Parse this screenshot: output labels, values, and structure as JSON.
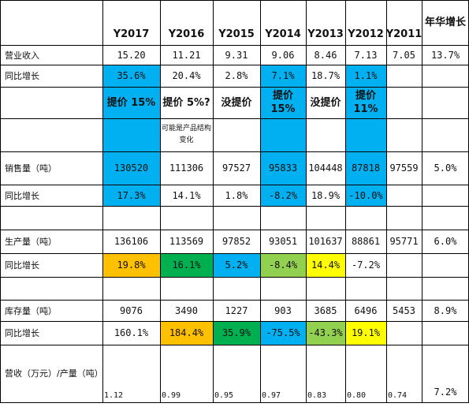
{
  "colors": {
    "blue": "#00B0F0",
    "orange": "#FFC000",
    "dark_green": "#00B050",
    "light_green": "#92D050",
    "yellow": "#FFFF00"
  },
  "headers": [
    "Y2017",
    "Y2016",
    "Y2015",
    "Y2014",
    "Y2013",
    "Y2012",
    "Y2011",
    "年华增长"
  ],
  "rows": {
    "revenue": {
      "label": "营业收入",
      "values": [
        "15.20",
        "11.21",
        "9.31",
        "9.06",
        "8.46",
        "7.13",
        "7.05",
        "13.7%"
      ]
    },
    "revenue_growth": {
      "label": "同比增长",
      "values": [
        "35.6%",
        "20.4%",
        "2.8%",
        "7.1%",
        "18.7%",
        "1.1%",
        "",
        ""
      ]
    },
    "price": {
      "values": [
        "提价 15%",
        "提价 5%?",
        "没提价",
        "提价 15%",
        "没提价",
        "提价 11%",
        "",
        ""
      ]
    },
    "price_note": {
      "values": [
        "",
        "可能是产品结构变化",
        "",
        "",
        "",
        "",
        "",
        ""
      ]
    },
    "sales_volume": {
      "label": "销售量（吨）",
      "values": [
        "130520",
        "111306",
        "97527",
        "95833",
        "104448",
        "87818",
        "97559",
        "5.0%"
      ]
    },
    "sales_growth": {
      "label": "同比增长",
      "values": [
        "17.3%",
        "14.1%",
        "1.8%",
        "-8.2%",
        "18.9%",
        "-10.0%",
        "",
        ""
      ]
    },
    "production": {
      "label": "生产量（吨）",
      "values": [
        "136106",
        "113569",
        "97852",
        "93051",
        "101637",
        "88861",
        "95771",
        "6.0%"
      ]
    },
    "production_growth": {
      "label": "同比增长",
      "values": [
        "19.8%",
        "16.1%",
        "5.2%",
        "-8.4%",
        "14.4%",
        "-7.2%",
        "",
        ""
      ]
    },
    "inventory": {
      "label": "库存量（吨）",
      "values": [
        "9076",
        "3490",
        "1227",
        "903",
        "3685",
        "6496",
        "5453",
        "8.9%"
      ]
    },
    "inventory_growth": {
      "label": "同比增长",
      "values": [
        "160.1%",
        "184.4%",
        "35.9%",
        "-75.5%",
        "-43.3%",
        "19.1%",
        "",
        ""
      ]
    },
    "revenue_per_ton": {
      "label": "营收（万元）/产量（吨）",
      "values": [
        "1.12",
        "0.99",
        "0.95",
        "0.97",
        "0.83",
        "0.80",
        "0.74",
        "7.2%"
      ]
    }
  }
}
